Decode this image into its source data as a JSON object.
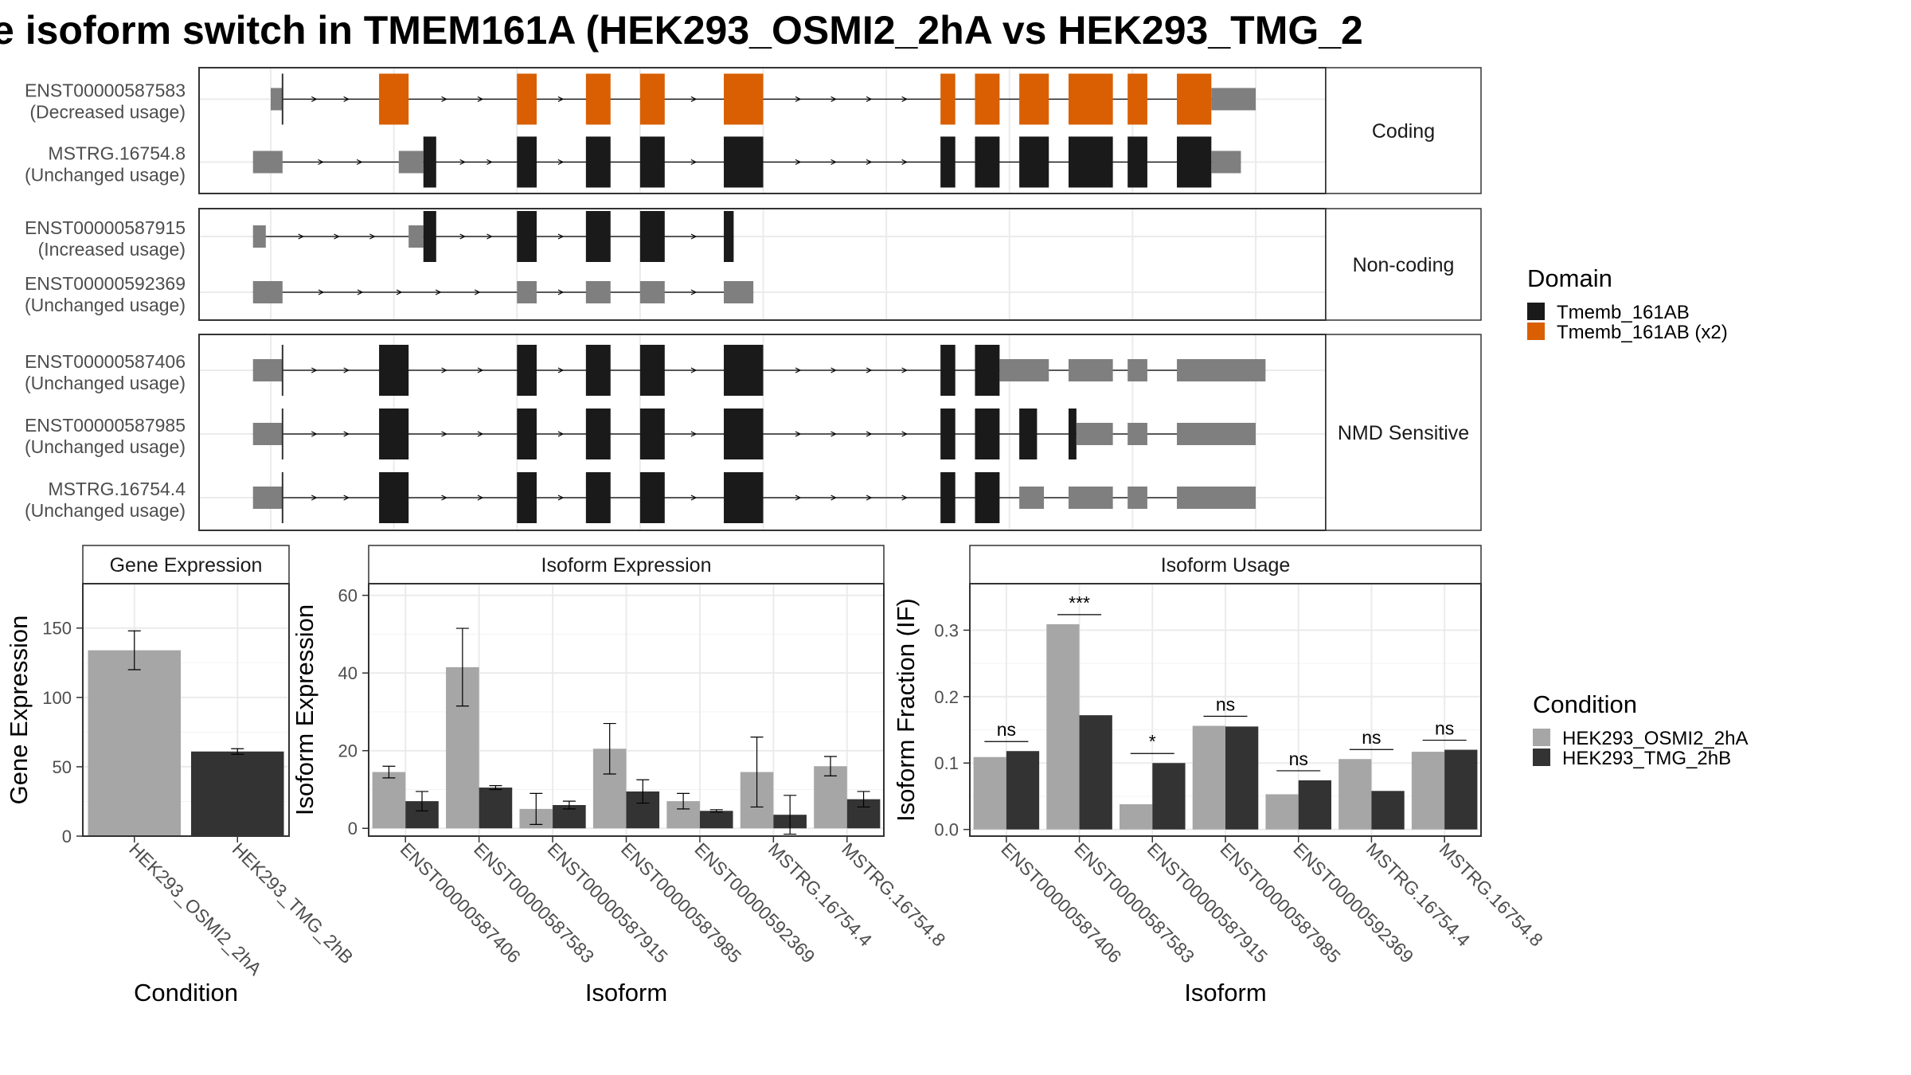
{
  "figure": {
    "title": "e isoform switch in TMEM161A (HEK293_OSMI2_2hA vs HEK293_TMG_2",
    "domain_legend": {
      "title": "Domain",
      "items": [
        {
          "label": "Tmemb_161AB",
          "color": "#1a1a1a"
        },
        {
          "label": "Tmemb_161AB (x2)",
          "color": "#d95f02"
        }
      ]
    },
    "condition_legend": {
      "title": "Condition",
      "items": [
        {
          "label": "HEK293_OSMI2_2hA",
          "color": "#a6a6a6"
        },
        {
          "label": "HEK293_TMG_2hB",
          "color": "#333333"
        }
      ]
    }
  },
  "chart_data": [
    {
      "type": "gene-structure",
      "groups": [
        {
          "label": "Coding",
          "transcripts": [
            {
              "name": "ENST00000587583",
              "usage": "(Decreased usage)",
              "utr5": [
                [
                  0.0,
                  0.012
                ]
              ],
              "cds": [
                [
                  0.11,
                  0.14
                ],
                [
                  0.25,
                  0.27
                ],
                [
                  0.32,
                  0.345
                ],
                [
                  0.375,
                  0.4
                ],
                [
                  0.46,
                  0.5
                ],
                [
                  0.68,
                  0.695
                ],
                [
                  0.715,
                  0.74
                ],
                [
                  0.76,
                  0.79
                ],
                [
                  0.81,
                  0.855
                ],
                [
                  0.87,
                  0.89
                ],
                [
                  0.92,
                  0.955
                ]
              ],
              "cds_color": "orange",
              "utr3": [
                [
                  0.955,
                  1.0
                ]
              ],
              "tss": 0.012
            },
            {
              "name": "MSTRG.16754.8",
              "usage": "(Unchanged usage)",
              "utr5": [
                [
                  -0.018,
                  0.012
                ],
                [
                  0.13,
                  0.155
                ]
              ],
              "cds": [
                [
                  0.155,
                  0.168
                ],
                [
                  0.25,
                  0.27
                ],
                [
                  0.32,
                  0.345
                ],
                [
                  0.375,
                  0.4
                ],
                [
                  0.46,
                  0.5
                ],
                [
                  0.68,
                  0.695
                ],
                [
                  0.715,
                  0.74
                ],
                [
                  0.76,
                  0.79
                ],
                [
                  0.81,
                  0.855
                ],
                [
                  0.87,
                  0.89
                ],
                [
                  0.92,
                  0.955
                ]
              ],
              "cds_color": "black",
              "utr3": [
                [
                  0.955,
                  0.985
                ]
              ]
            }
          ]
        },
        {
          "label": "Non-coding",
          "transcripts": [
            {
              "name": "ENST00000587915",
              "usage": "(Increased usage)",
              "utr5": [
                [
                  -0.018,
                  -0.005
                ],
                [
                  0.14,
                  0.155
                ]
              ],
              "cds": [
                [
                  0.155,
                  0.168
                ],
                [
                  0.25,
                  0.27
                ],
                [
                  0.32,
                  0.345
                ],
                [
                  0.375,
                  0.4
                ],
                [
                  0.46,
                  0.47
                ]
              ],
              "cds_color": "black",
              "utr3": []
            },
            {
              "name": "ENST00000592369",
              "usage": "(Unchanged usage)",
              "utr5": [
                [
                  -0.018,
                  0.012
                ],
                [
                  0.25,
                  0.27
                ],
                [
                  0.32,
                  0.345
                ],
                [
                  0.375,
                  0.4
                ],
                [
                  0.46,
                  0.49
                ]
              ],
              "cds": [],
              "cds_color": "black",
              "utr3": []
            }
          ]
        },
        {
          "label": "NMD Sensitive",
          "transcripts": [
            {
              "name": "ENST00000587406",
              "usage": "(Unchanged usage)",
              "utr5": [
                [
                  -0.018,
                  0.012
                ]
              ],
              "cds": [
                [
                  0.11,
                  0.14
                ],
                [
                  0.25,
                  0.27
                ],
                [
                  0.32,
                  0.345
                ],
                [
                  0.375,
                  0.4
                ],
                [
                  0.46,
                  0.5
                ],
                [
                  0.68,
                  0.695
                ],
                [
                  0.715,
                  0.74
                ]
              ],
              "cds_color": "black",
              "utr3": [
                [
                  0.74,
                  0.79
                ],
                [
                  0.81,
                  0.855
                ],
                [
                  0.87,
                  0.89
                ],
                [
                  0.92,
                  1.01
                ]
              ],
              "tss": 0.012
            },
            {
              "name": "ENST00000587985",
              "usage": "(Unchanged usage)",
              "utr5": [
                [
                  -0.018,
                  0.012
                ]
              ],
              "cds": [
                [
                  0.11,
                  0.14
                ],
                [
                  0.25,
                  0.27
                ],
                [
                  0.32,
                  0.345
                ],
                [
                  0.375,
                  0.4
                ],
                [
                  0.46,
                  0.5
                ],
                [
                  0.68,
                  0.695
                ],
                [
                  0.715,
                  0.74
                ],
                [
                  0.76,
                  0.778
                ],
                [
                  0.81,
                  0.818
                ]
              ],
              "cds_color": "black",
              "utr3": [
                [
                  0.818,
                  0.855
                ],
                [
                  0.87,
                  0.89
                ],
                [
                  0.92,
                  1.0
                ]
              ],
              "tss": 0.012
            },
            {
              "name": "MSTRG.16754.4",
              "usage": "(Unchanged usage)",
              "utr5": [
                [
                  -0.018,
                  0.012
                ]
              ],
              "cds": [
                [
                  0.11,
                  0.14
                ],
                [
                  0.25,
                  0.27
                ],
                [
                  0.32,
                  0.345
                ],
                [
                  0.375,
                  0.4
                ],
                [
                  0.46,
                  0.5
                ],
                [
                  0.68,
                  0.695
                ],
                [
                  0.715,
                  0.74
                ]
              ],
              "cds_color": "black",
              "utr3": [
                [
                  0.76,
                  0.785
                ],
                [
                  0.81,
                  0.855
                ],
                [
                  0.87,
                  0.89
                ],
                [
                  0.92,
                  1.0
                ]
              ],
              "tss": 0.012
            }
          ]
        }
      ]
    },
    {
      "type": "bar",
      "panel": "Gene Expression",
      "xlabel": "Condition",
      "ylabel": "Gene Expression",
      "ylim": [
        0,
        182
      ],
      "yticks": [
        0,
        50,
        100,
        150
      ],
      "categories": [
        "HEK293_OSMI2_2hA",
        "HEK293_TMG_2hB"
      ],
      "series": [
        {
          "values": [
            134,
            61
          ],
          "err": [
            14,
            2
          ]
        }
      ]
    },
    {
      "type": "bar",
      "panel": "Isoform Expression",
      "xlabel": "Isoform",
      "ylabel": "Isoform Expression",
      "ylim": [
        -2,
        63
      ],
      "yticks": [
        0,
        20,
        40,
        60
      ],
      "categories": [
        "ENST00000587406",
        "ENST00000587583",
        "ENST00000587915",
        "ENST00000587985",
        "ENST00000592369",
        "MSTRG.16754.4",
        "MSTRG.16754.8"
      ],
      "series": [
        {
          "name": "HEK293_OSMI2_2hA",
          "values": [
            14.5,
            41.5,
            5,
            20.5,
            7,
            14.5,
            16
          ],
          "err": [
            1.5,
            10,
            4,
            6.5,
            2,
            9,
            2.5
          ]
        },
        {
          "name": "HEK293_TMG_2hB",
          "values": [
            7,
            10.5,
            6,
            9.5,
            4.5,
            3.5,
            7.5
          ],
          "err": [
            2.5,
            0.5,
            1,
            3,
            0.3,
            5,
            2
          ]
        }
      ]
    },
    {
      "type": "bar",
      "panel": "Isoform Usage",
      "xlabel": "Isoform",
      "ylabel": "Isoform Fraction (IF)",
      "ylim": [
        -0.01,
        0.37
      ],
      "yticks": [
        0.0,
        0.1,
        0.2,
        0.3
      ],
      "categories": [
        "ENST00000587406",
        "ENST00000587583",
        "ENST00000587915",
        "ENST00000587985",
        "ENST00000592369",
        "MSTRG.16754.4",
        "MSTRG.16754.8"
      ],
      "series": [
        {
          "name": "HEK293_OSMI2_2hA",
          "values": [
            0.109,
            0.309,
            0.038,
            0.156,
            0.053,
            0.106,
            0.117
          ]
        },
        {
          "name": "HEK293_TMG_2hB",
          "values": [
            0.118,
            0.172,
            0.1,
            0.155,
            0.074,
            0.058,
            0.12
          ]
        }
      ],
      "significance": [
        "ns",
        "***",
        "*",
        "ns",
        "ns",
        "ns",
        "ns"
      ]
    }
  ]
}
